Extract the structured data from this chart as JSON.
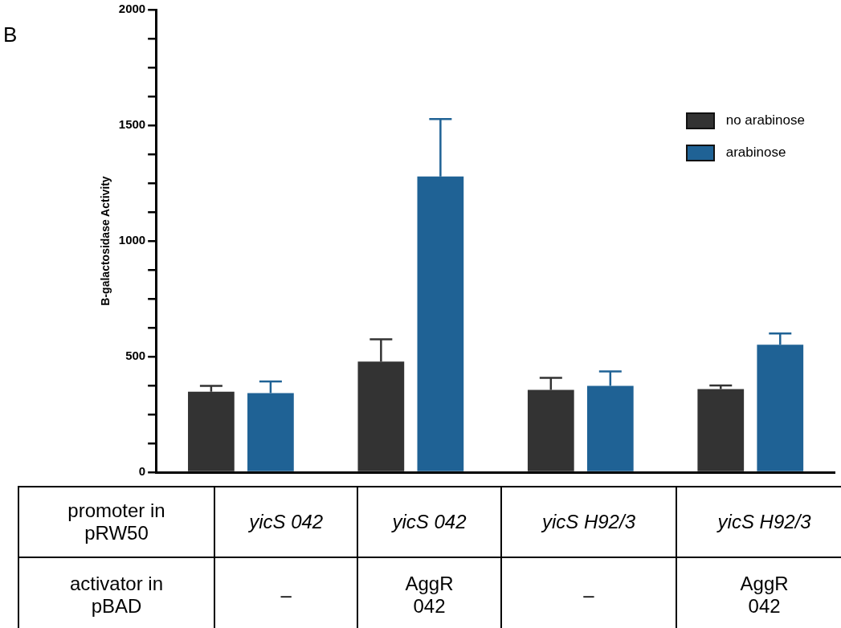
{
  "chart_data": {
    "type": "bar",
    "title": "B",
    "ylabel": "B-galactosidase Activity",
    "categories": [
      "yicS 042",
      "yicS 042",
      "yicS H92/3",
      "yicS H92/3"
    ],
    "series": [
      {
        "name": "no arabinose",
        "color": "#333333",
        "values": [
          348,
          478,
          356,
          359
        ],
        "errors": [
          [
            348,
            373
          ],
          [
            478,
            575
          ],
          [
            356,
            408
          ],
          [
            359,
            375
          ]
        ]
      },
      {
        "name": "arabinose",
        "color": "#1f6295",
        "values": [
          342,
          1279,
          373,
          551
        ],
        "errors": [
          [
            342,
            392
          ],
          [
            1279,
            1527
          ],
          [
            373,
            436
          ],
          [
            551,
            600
          ]
        ]
      }
    ],
    "ylim": [
      0,
      2000
    ],
    "yticks": [
      0,
      {
        "value": 125,
        "label": null
      },
      {
        "value": 250,
        "label": null
      },
      {
        "value": 375,
        "label": null
      },
      500,
      {
        "value": 625,
        "label": null
      },
      {
        "value": 750,
        "label": null
      },
      {
        "value": 875,
        "label": null
      },
      1000,
      {
        "value": 1125,
        "label": null
      },
      {
        "value": 1250,
        "label": null
      },
      {
        "value": 1375,
        "label": null
      },
      1500,
      {
        "value": 1625,
        "label": null
      },
      {
        "value": 1750,
        "label": null
      },
      {
        "value": 1875,
        "label": null
      },
      2000
    ],
    "grid": false,
    "legend": "top right",
    "annotations": [
      "promoter in pRW50",
      "activator in pBAD",
      "–",
      "AggR 042",
      "–",
      "AggR 042"
    ]
  }
}
